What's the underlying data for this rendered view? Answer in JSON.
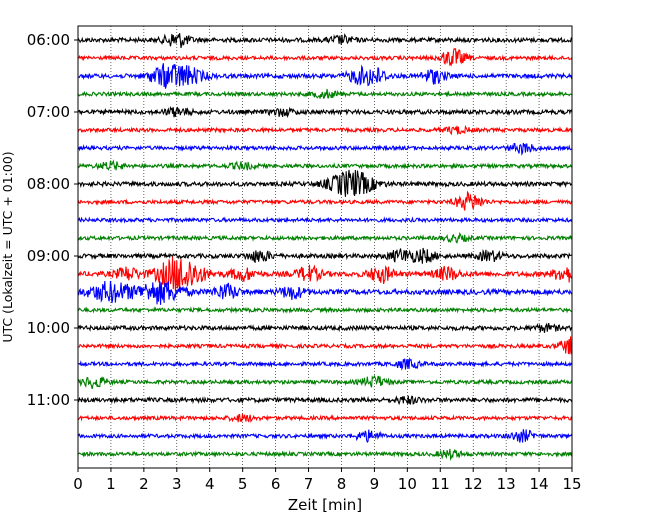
{
  "chart_data": {
    "type": "line",
    "title": "",
    "xlabel": "Zeit  [min]",
    "ylabel": "UTC (Lokalzeit = UTC + 01:00)",
    "xlim": [
      0,
      15
    ],
    "x_ticks": [
      "0",
      "1",
      "2",
      "3",
      "4",
      "5",
      "6",
      "7",
      "8",
      "9",
      "10",
      "11",
      "12",
      "13",
      "14",
      "15"
    ],
    "y_ticks": [
      "06:00",
      "07:00",
      "08:00",
      "09:00",
      "10:00",
      "11:00"
    ],
    "grid": "vertical dotted at each minute",
    "trace_interval_min": 15,
    "trace_colors": [
      "#000000",
      "#ff0000",
      "#0000ff",
      "#008000"
    ],
    "traces": [
      {
        "start": "06:00",
        "color": "#000000",
        "amplitude": 0.35,
        "events": [
          {
            "x": 3.0,
            "amp": 1.2
          },
          {
            "x": 8.0,
            "amp": 0.6
          }
        ]
      },
      {
        "start": "06:15",
        "color": "#ff0000",
        "amplitude": 0.3,
        "events": [
          {
            "x": 11.4,
            "amp": 1.4
          }
        ]
      },
      {
        "start": "06:30",
        "color": "#0000ff",
        "amplitude": 0.35,
        "events": [
          {
            "x": 3.1,
            "amp": 1.8
          },
          {
            "x": 2.5,
            "amp": 0.9
          },
          {
            "x": 9.0,
            "amp": 1.3
          },
          {
            "x": 10.8,
            "amp": 1.1
          },
          {
            "x": 8.5,
            "amp": 1.0
          }
        ]
      },
      {
        "start": "06:45",
        "color": "#008000",
        "amplitude": 0.3,
        "events": [
          {
            "x": 7.5,
            "amp": 0.6
          }
        ]
      },
      {
        "start": "07:00",
        "color": "#000000",
        "amplitude": 0.35,
        "events": [
          {
            "x": 3.0,
            "amp": 0.6
          },
          {
            "x": 6.2,
            "amp": 0.5
          }
        ]
      },
      {
        "start": "07:15",
        "color": "#ff0000",
        "amplitude": 0.3,
        "events": [
          {
            "x": 11.5,
            "amp": 0.5
          }
        ]
      },
      {
        "start": "07:30",
        "color": "#0000ff",
        "amplitude": 0.3,
        "events": [
          {
            "x": 13.5,
            "amp": 0.8
          }
        ]
      },
      {
        "start": "07:45",
        "color": "#008000",
        "amplitude": 0.3,
        "events": [
          {
            "x": 1.0,
            "amp": 0.6
          },
          {
            "x": 5.0,
            "amp": 0.5
          }
        ]
      },
      {
        "start": "08:00",
        "color": "#000000",
        "amplitude": 0.35,
        "events": [
          {
            "x": 8.3,
            "amp": 2.2
          }
        ]
      },
      {
        "start": "08:15",
        "color": "#ff0000",
        "amplitude": 0.3,
        "events": [
          {
            "x": 11.8,
            "amp": 0.9
          },
          {
            "x": 12.0,
            "amp": 0.6
          }
        ]
      },
      {
        "start": "08:30",
        "color": "#0000ff",
        "amplitude": 0.3,
        "events": []
      },
      {
        "start": "08:45",
        "color": "#008000",
        "amplitude": 0.3,
        "events": [
          {
            "x": 11.5,
            "amp": 0.5
          }
        ]
      },
      {
        "start": "09:00",
        "color": "#000000",
        "amplitude": 0.35,
        "events": [
          {
            "x": 5.5,
            "amp": 0.9
          },
          {
            "x": 9.8,
            "amp": 1.0
          },
          {
            "x": 10.5,
            "amp": 1.0
          },
          {
            "x": 12.5,
            "amp": 0.8
          }
        ]
      },
      {
        "start": "09:15",
        "color": "#ff0000",
        "amplitude": 0.4,
        "events": [
          {
            "x": 3.1,
            "amp": 3.0
          },
          {
            "x": 1.5,
            "amp": 1.0
          },
          {
            "x": 5.0,
            "amp": 1.0
          },
          {
            "x": 7.0,
            "amp": 1.2
          },
          {
            "x": 9.2,
            "amp": 1.3
          },
          {
            "x": 11.2,
            "amp": 1.0
          },
          {
            "x": 14.8,
            "amp": 1.2
          }
        ]
      },
      {
        "start": "09:30",
        "color": "#0000ff",
        "amplitude": 0.4,
        "events": [
          {
            "x": 1.0,
            "amp": 1.6
          },
          {
            "x": 2.5,
            "amp": 1.8
          },
          {
            "x": 4.5,
            "amp": 1.2
          },
          {
            "x": 6.5,
            "amp": 1.0
          }
        ]
      },
      {
        "start": "09:45",
        "color": "#008000",
        "amplitude": 0.3,
        "events": []
      },
      {
        "start": "10:00",
        "color": "#000000",
        "amplitude": 0.35,
        "events": [
          {
            "x": 14.2,
            "amp": 0.5
          }
        ]
      },
      {
        "start": "10:15",
        "color": "#ff0000",
        "amplitude": 0.3,
        "events": [
          {
            "x": 15.0,
            "amp": 1.4
          }
        ]
      },
      {
        "start": "10:30",
        "color": "#0000ff",
        "amplitude": 0.3,
        "events": [
          {
            "x": 10.0,
            "amp": 0.7
          }
        ]
      },
      {
        "start": "10:45",
        "color": "#008000",
        "amplitude": 0.3,
        "events": [
          {
            "x": 0.5,
            "amp": 0.9
          },
          {
            "x": 9.0,
            "amp": 0.9
          }
        ]
      },
      {
        "start": "11:00",
        "color": "#000000",
        "amplitude": 0.35,
        "events": [
          {
            "x": 10.0,
            "amp": 0.5
          }
        ]
      },
      {
        "start": "11:15",
        "color": "#ff0000",
        "amplitude": 0.3,
        "events": [
          {
            "x": 5.0,
            "amp": 0.5
          }
        ]
      },
      {
        "start": "11:30",
        "color": "#0000ff",
        "amplitude": 0.3,
        "events": [
          {
            "x": 8.8,
            "amp": 0.8
          },
          {
            "x": 13.5,
            "amp": 0.9
          }
        ]
      },
      {
        "start": "11:45",
        "color": "#008000",
        "amplitude": 0.3,
        "events": [
          {
            "x": 11.3,
            "amp": 0.6
          }
        ]
      }
    ]
  }
}
